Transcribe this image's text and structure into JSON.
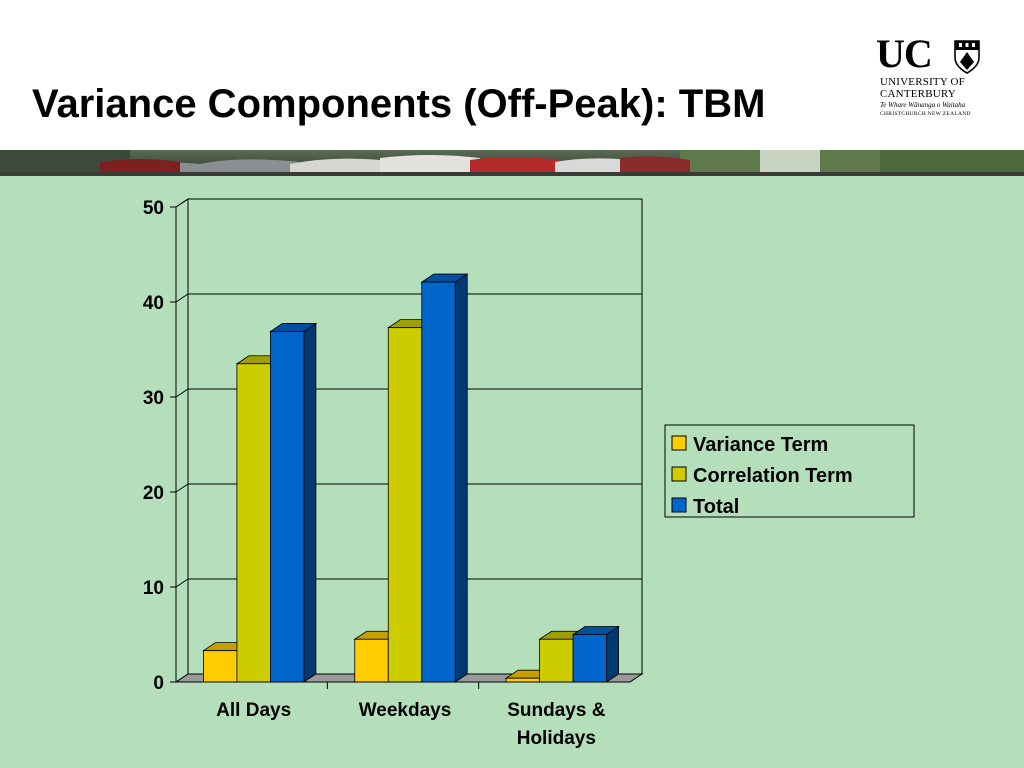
{
  "slide": {
    "title": "Variance Components (Off-Peak): TBM"
  },
  "logo": {
    "mark": "UC",
    "line1": "UNIVERSITY OF",
    "line2": "CANTERBURY",
    "line3": "Te Whare Wānanga o Waitaha",
    "line4": "CHRISTCHURCH NEW ZEALAND",
    "crest_icon": "university-crest-icon"
  },
  "photo_strip": {
    "icon": "traffic-photo-strip"
  },
  "colors": {
    "content_bg": "#b5dfbb",
    "variance": "#ffcc00",
    "correlation": "#cccc00",
    "total": "#0066cc"
  },
  "chart_data": {
    "type": "bar",
    "three_d": true,
    "categories": [
      [
        "All Days"
      ],
      [
        "Weekdays"
      ],
      [
        "Sundays &",
        "Holidays"
      ]
    ],
    "series": [
      {
        "name": "Variance Term",
        "color": "#ffcc00",
        "values": [
          3.3,
          4.5,
          0.4
        ]
      },
      {
        "name": "Correlation Term",
        "color": "#cccc00",
        "values": [
          33.5,
          37.3,
          4.5
        ]
      },
      {
        "name": "Total",
        "color": "#0066cc",
        "values": [
          36.9,
          42.1,
          5.0
        ]
      }
    ],
    "yticks": [
      0,
      10,
      20,
      30,
      40,
      50
    ],
    "ylim": [
      0,
      50
    ],
    "grid": true,
    "legend": "right"
  }
}
